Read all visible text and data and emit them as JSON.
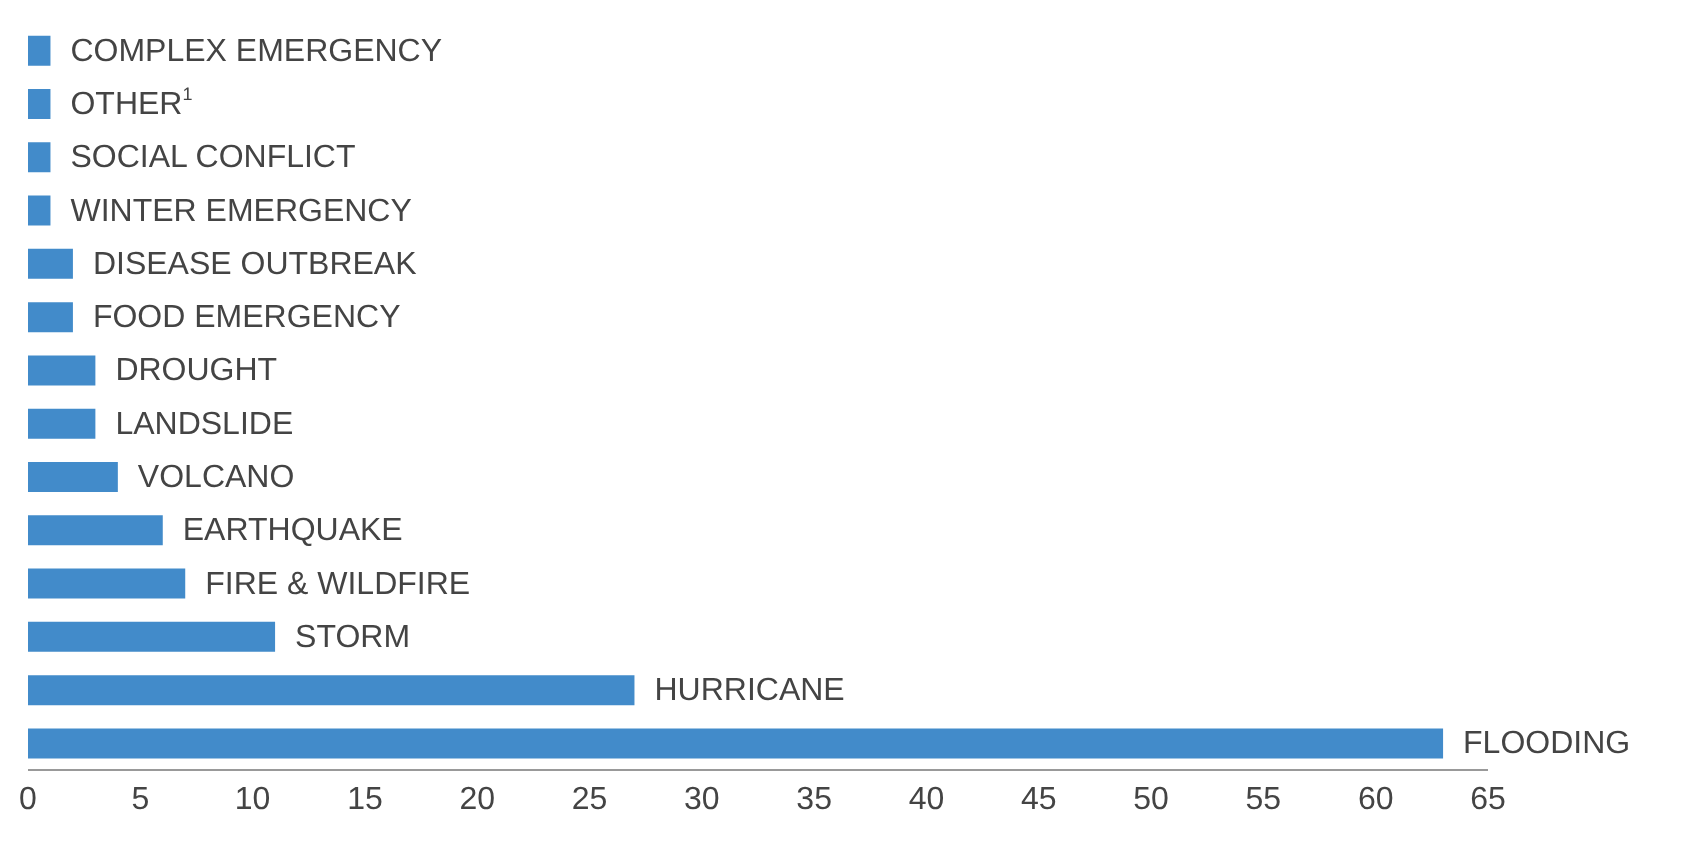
{
  "chart_data": {
    "type": "bar",
    "orientation": "horizontal",
    "categories": [
      "COMPLEX EMERGENCY",
      "OTHER$^{1}$",
      "SOCIAL CONFLICT",
      "WINTER EMERGENCY",
      "DISEASE OUTBREAK",
      "FOOD EMERGENCY",
      "DROUGHT",
      "LANDSLIDE",
      "VOLCANO",
      "EARTHQUAKE",
      "FIRE & WILDFIRE",
      "STORM",
      "HURRICANE",
      "FLOODING"
    ],
    "values": [
      1,
      1,
      1,
      1,
      2,
      2,
      3,
      3,
      4,
      6,
      7,
      11,
      27,
      63
    ],
    "color": "#428bca",
    "xlim": [
      0,
      65
    ],
    "xticks": [
      0,
      5,
      10,
      15,
      20,
      25,
      30,
      35,
      40,
      45,
      50,
      55,
      60,
      65
    ],
    "grid": false,
    "legend": false
  }
}
